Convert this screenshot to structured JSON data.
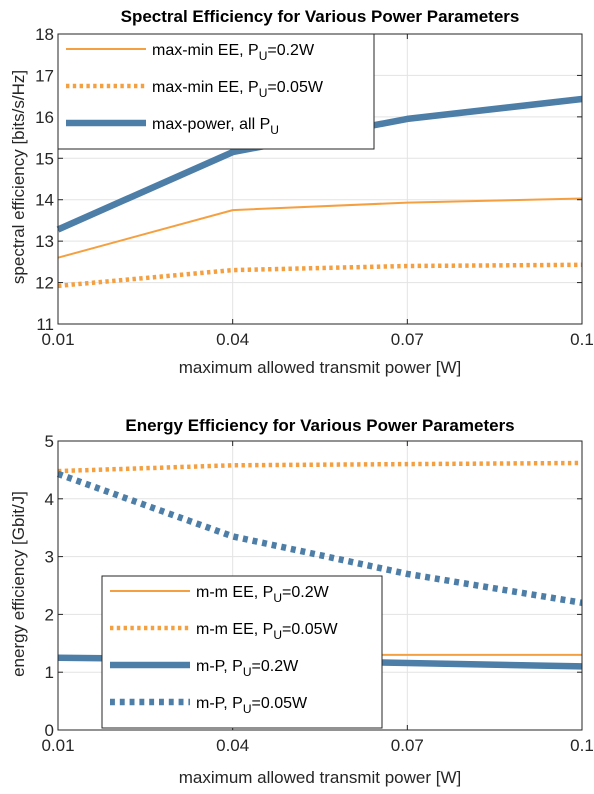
{
  "chart_data": [
    {
      "type": "line",
      "title": "Spectral Efficiency for Various Power Parameters",
      "xlabel": "maximum allowed transmit power [W]",
      "ylabel": "spectral efficiency [bits/s/Hz]",
      "x": [
        0.01,
        0.04,
        0.07,
        0.1
      ],
      "xticks": [
        "0.01",
        "0.04",
        "0.07",
        "0.1"
      ],
      "yticks": [
        "11",
        "12",
        "13",
        "14",
        "15",
        "16",
        "17",
        "18"
      ],
      "xlim": [
        0.01,
        0.1
      ],
      "ylim": [
        11,
        18
      ],
      "grid": true,
      "legend_position": "top-left",
      "series": [
        {
          "legend_main": "max-min EE, P",
          "legend_sub": "U",
          "legend_tail": "=0.2W",
          "color": "#F5A040",
          "style": "solid",
          "width": "thin",
          "values": [
            12.6,
            13.75,
            13.93,
            14.03
          ]
        },
        {
          "legend_main": "max-min EE, P",
          "legend_sub": "U",
          "legend_tail": "=0.05W",
          "color": "#F5A040",
          "style": "dotted",
          "width": "thick",
          "values": [
            11.92,
            12.3,
            12.4,
            12.43
          ]
        },
        {
          "legend_main": "max-power, all P",
          "legend_sub": "U",
          "legend_tail": "",
          "color": "#4C7EA8",
          "style": "solid",
          "width": "extra-thick",
          "values": [
            13.28,
            15.15,
            15.95,
            16.43
          ]
        }
      ]
    },
    {
      "type": "line",
      "title": "Energy Efficiency for Various Power Parameters",
      "xlabel": "maximum allowed transmit power [W]",
      "ylabel": "energy efficiency [Gbit/J]",
      "x": [
        0.01,
        0.04,
        0.07,
        0.1
      ],
      "xticks": [
        "0.01",
        "0.04",
        "0.07",
        "0.1"
      ],
      "yticks": [
        "0",
        "1",
        "2",
        "3",
        "4",
        "5"
      ],
      "xlim": [
        0.01,
        0.1
      ],
      "ylim": [
        0,
        5
      ],
      "grid": true,
      "legend_position": "bottom-left",
      "series": [
        {
          "legend_main": "m-m EE, P",
          "legend_sub": "U",
          "legend_tail": "=0.2W",
          "color": "#F5A040",
          "style": "solid",
          "width": "thin",
          "values": [
            1.27,
            1.3,
            1.3,
            1.3
          ]
        },
        {
          "legend_main": "m-m EE, P",
          "legend_sub": "U",
          "legend_tail": "=0.05W",
          "color": "#F5A040",
          "style": "dotted",
          "width": "thick",
          "values": [
            4.48,
            4.58,
            4.6,
            4.62
          ]
        },
        {
          "legend_main": "m-P, P",
          "legend_sub": "U",
          "legend_tail": "=0.2W",
          "color": "#4C7EA8",
          "style": "solid",
          "width": "extra-thick",
          "values": [
            1.25,
            1.22,
            1.16,
            1.1
          ]
        },
        {
          "legend_main": "m-P, P",
          "legend_sub": "U",
          "legend_tail": "=0.05W",
          "color": "#4C7EA8",
          "style": "dotted",
          "width": "extra-thick",
          "values": [
            4.43,
            3.35,
            2.7,
            2.2
          ]
        }
      ]
    }
  ]
}
